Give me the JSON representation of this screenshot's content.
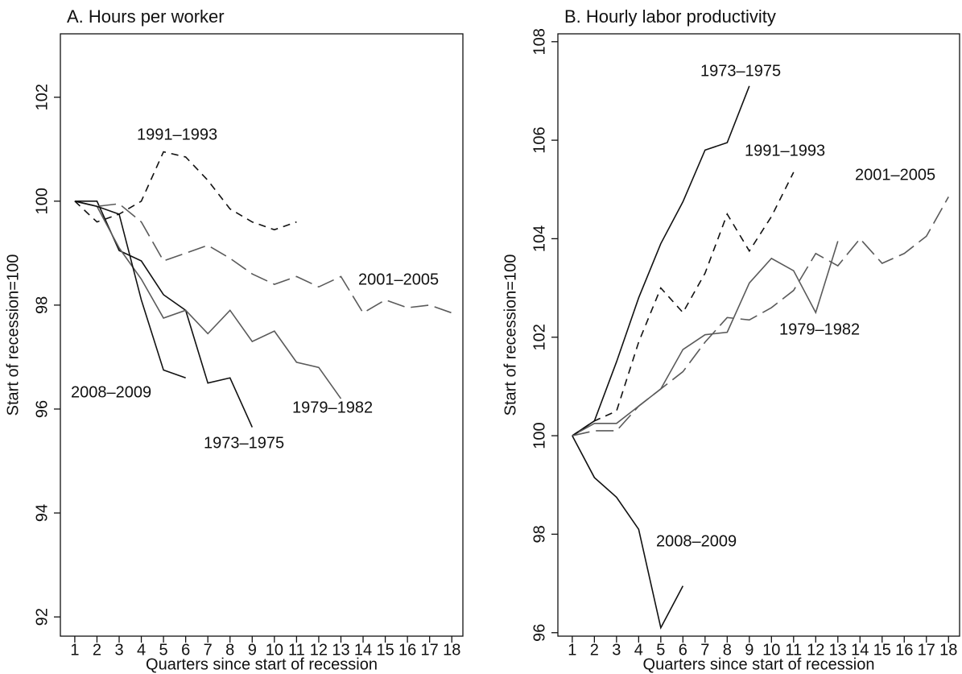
{
  "chart_data": [
    {
      "type": "line",
      "title": "A. Hours per worker",
      "x_label": "Quarters since start of recession",
      "y_label": "Start of recession=100",
      "x": [
        1,
        2,
        3,
        4,
        5,
        6,
        7,
        8,
        9,
        10,
        11,
        12,
        13,
        14,
        15,
        16,
        17,
        18
      ],
      "xlim": [
        0.35,
        18.5
      ],
      "xticks": [
        1,
        2,
        3,
        4,
        5,
        6,
        7,
        8,
        9,
        10,
        11,
        12,
        13,
        14,
        15,
        16,
        17,
        18
      ],
      "ylim": [
        91.63,
        103.22
      ],
      "yticks": [
        92,
        94,
        96,
        98,
        100,
        102
      ],
      "series": [
        {
          "name": "1973–1975",
          "color": "#111111",
          "dash": "solid",
          "values": [
            100,
            100,
            99.05,
            98.85,
            98.2,
            97.9,
            96.5,
            96.6,
            95.65,
            null,
            null,
            null,
            null,
            null,
            null,
            null,
            null,
            null
          ]
        },
        {
          "name": "1979–1982",
          "color": "#5a5a5a",
          "dash": "solid",
          "values": [
            100,
            99.9,
            99.1,
            98.5,
            97.75,
            97.9,
            97.45,
            97.9,
            97.3,
            97.5,
            96.9,
            96.8,
            96.2,
            null,
            null,
            null,
            null,
            null
          ]
        },
        {
          "name": "1991–1993",
          "color": "#111111",
          "dash": "dashed",
          "values": [
            100,
            99.6,
            99.75,
            100,
            100.95,
            100.85,
            100.4,
            99.85,
            99.6,
            99.45,
            99.6,
            null,
            null,
            null,
            null,
            null,
            null,
            null
          ]
        },
        {
          "name": "2001–2005",
          "color": "#5a5a5a",
          "dash": "longdash",
          "values": [
            100,
            99.9,
            99.95,
            99.6,
            98.85,
            99.0,
            99.15,
            98.9,
            98.6,
            98.4,
            98.55,
            98.35,
            98.55,
            97.85,
            98.1,
            97.95,
            98.0,
            97.85
          ]
        },
        {
          "name": "2008–2009",
          "color": "#111111",
          "dash": "solid",
          "values": [
            100,
            99.9,
            99.75,
            98.1,
            96.75,
            96.6,
            null,
            null,
            null,
            null,
            null,
            null,
            null,
            null,
            null,
            null,
            null,
            null
          ]
        }
      ]
    },
    {
      "type": "line",
      "title": "B. Hourly labor productivity",
      "x_label": "Quarters since start of recession",
      "y_label": "Start of recession=100",
      "x": [
        1,
        2,
        3,
        4,
        5,
        6,
        7,
        8,
        9,
        10,
        11,
        12,
        13,
        14,
        15,
        16,
        17,
        18
      ],
      "xlim": [
        0.35,
        18.5
      ],
      "xticks": [
        1,
        2,
        3,
        4,
        5,
        6,
        7,
        8,
        9,
        10,
        11,
        12,
        13,
        14,
        15,
        16,
        17,
        18
      ],
      "ylim": [
        95.93,
        108.16
      ],
      "yticks": [
        96,
        98,
        100,
        102,
        104,
        106,
        108
      ],
      "series": [
        {
          "name": "1973–1975",
          "color": "#111111",
          "dash": "solid",
          "values": [
            100,
            100.3,
            101.5,
            102.8,
            103.9,
            104.75,
            105.8,
            105.95,
            107.1,
            null,
            null,
            null,
            null,
            null,
            null,
            null,
            null,
            null
          ]
        },
        {
          "name": "1979–1982",
          "color": "#5a5a5a",
          "dash": "solid",
          "values": [
            100,
            100.25,
            100.25,
            100.6,
            100.95,
            101.75,
            102.05,
            102.1,
            103.1,
            103.6,
            103.35,
            102.5,
            103.95,
            null,
            null,
            null,
            null,
            null
          ]
        },
        {
          "name": "1991–1993",
          "color": "#111111",
          "dash": "dashed",
          "values": [
            100,
            100.3,
            100.5,
            101.9,
            103.0,
            102.5,
            103.3,
            104.5,
            103.75,
            104.45,
            105.35,
            null,
            null,
            null,
            null,
            null,
            null,
            null
          ]
        },
        {
          "name": "2001–2005",
          "color": "#5a5a5a",
          "dash": "longdash",
          "values": [
            100,
            100.1,
            100.1,
            100.6,
            100.95,
            101.3,
            101.9,
            102.4,
            102.35,
            102.6,
            102.95,
            103.7,
            103.45,
            104.0,
            103.5,
            103.7,
            104.05,
            104.85
          ]
        },
        {
          "name": "2008–2009",
          "color": "#111111",
          "dash": "solid",
          "values": [
            100,
            99.15,
            98.75,
            98.1,
            96.1,
            96.95,
            null,
            null,
            null,
            null,
            null,
            null,
            null,
            null,
            null,
            null,
            null,
            null
          ]
        }
      ]
    }
  ]
}
